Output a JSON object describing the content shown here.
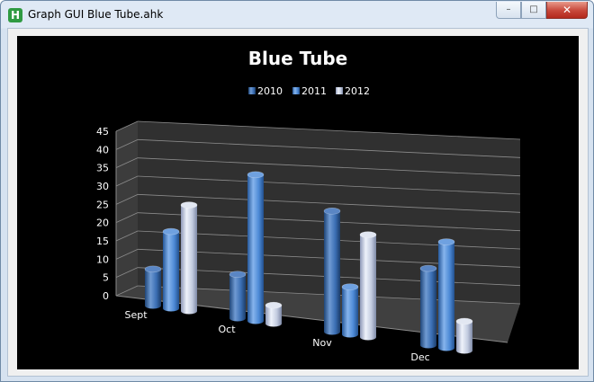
{
  "window": {
    "title": "Graph GUI Blue Tube.ahk",
    "app_icon_letter": "H"
  },
  "controls": {
    "minimize": "–",
    "maximize": "□",
    "close": "✕"
  },
  "chart_data": {
    "type": "bar",
    "title": "Blue Tube",
    "categories": [
      "Sept",
      "Oct",
      "Nov",
      "Dec"
    ],
    "series": [
      {
        "name": "2010",
        "values": [
          10,
          12,
          33,
          21
        ]
      },
      {
        "name": "2011",
        "values": [
          21,
          40,
          13,
          29
        ]
      },
      {
        "name": "2012",
        "values": [
          29,
          5,
          28,
          8
        ]
      }
    ],
    "yticks": [
      "0",
      "5",
      "10",
      "15",
      "20",
      "25",
      "30",
      "35",
      "40",
      "45"
    ],
    "ylim": [
      0,
      45
    ],
    "legend": "top",
    "colors": [
      "#3b6fb4",
      "#4d8ad6",
      "#c3cce0"
    ]
  }
}
